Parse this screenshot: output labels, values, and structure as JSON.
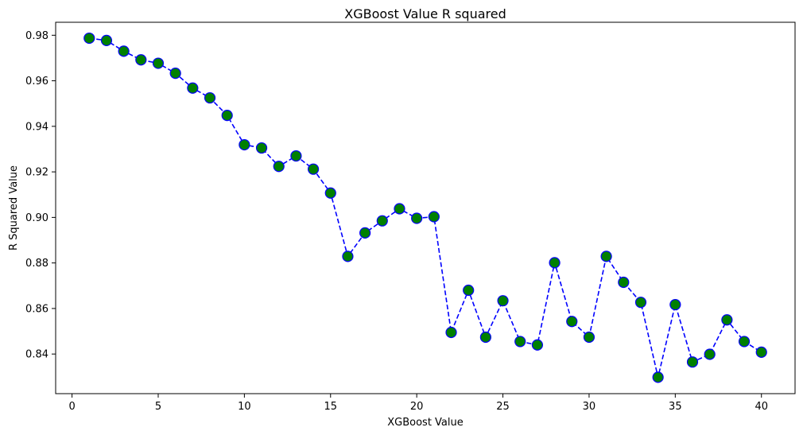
{
  "chart_data": {
    "type": "line",
    "title": "XGBoost Value R squared",
    "xlabel": "XGBoost Value",
    "ylabel": "R Squared Value",
    "xlim": [
      -0.95,
      41.95
    ],
    "ylim": [
      0.8226,
      0.9857
    ],
    "xticks": [
      0,
      5,
      10,
      15,
      20,
      25,
      30,
      35,
      40
    ],
    "yticks": [
      0.84,
      0.86,
      0.88,
      0.9,
      0.92,
      0.94,
      0.96,
      0.98
    ],
    "ytick_labels": [
      "0.84",
      "0.86",
      "0.88",
      "0.90",
      "0.92",
      "0.94",
      "0.96",
      "0.98"
    ],
    "grid": false,
    "line_style": "dashed",
    "line_color": "#0000ff",
    "marker_face_color": "#008000",
    "marker_edge_color": "#0000ff",
    "series": [
      {
        "x": [
          1,
          2,
          3,
          4,
          5,
          6,
          7,
          8,
          9,
          10,
          11,
          12,
          13,
          14,
          15,
          16,
          17,
          18,
          19,
          20,
          21,
          22,
          23,
          24,
          25,
          26,
          27,
          28,
          29,
          30,
          31,
          32,
          33,
          34,
          35,
          36,
          37,
          38,
          39,
          40
        ],
        "values": [
          0.9787,
          0.9777,
          0.973,
          0.9692,
          0.9677,
          0.9633,
          0.9568,
          0.9525,
          0.9448,
          0.9319,
          0.9305,
          0.9224,
          0.927,
          0.9212,
          0.9107,
          0.8829,
          0.8932,
          0.8985,
          0.9038,
          0.8996,
          0.9003,
          0.8495,
          0.868,
          0.8474,
          0.8634,
          0.8455,
          0.844,
          0.8801,
          0.8543,
          0.8474,
          0.8829,
          0.8715,
          0.8627,
          0.8298,
          0.8617,
          0.8365,
          0.8399,
          0.855,
          0.8455,
          0.8408
        ]
      }
    ]
  }
}
